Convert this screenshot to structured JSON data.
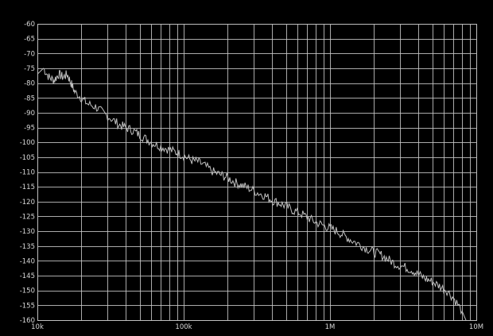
{
  "colors": {
    "background": "#000000",
    "plot_border": "#bfbfbf",
    "grid": "#c8c8c8",
    "trace": "#c0c0c0",
    "tick_label": "#d8d8d8"
  },
  "chart_data": {
    "type": "line",
    "title": "",
    "xlabel": "",
    "ylabel": "",
    "x_scale": "log",
    "xlim": [
      10000,
      10000000
    ],
    "ylim": [
      -160,
      -60
    ],
    "grid": true,
    "x_tick_labels": [
      {
        "value": 10000,
        "label": "10k"
      },
      {
        "value": 100000,
        "label": "100k"
      },
      {
        "value": 1000000,
        "label": "1M"
      },
      {
        "value": 10000000,
        "label": "10M"
      }
    ],
    "y_tick_labels": [
      "-60",
      "-65",
      "-70",
      "-75",
      "-80",
      "-85",
      "-90",
      "-95",
      "-100",
      "-105",
      "-110",
      "-115",
      "-120",
      "-125",
      "-130",
      "-135",
      "-140",
      "-145",
      "-150",
      "-155",
      "-160"
    ],
    "series": [
      {
        "x": [
          10000,
          11000,
          12000,
          13000,
          14000,
          15000,
          16000,
          17000,
          18000,
          20000,
          22000,
          25000,
          28000,
          32000,
          36000,
          40000,
          45000,
          50000,
          56000,
          63000,
          71000,
          80000,
          90000,
          100000,
          112000,
          125000,
          140000,
          160000,
          180000,
          200000,
          224000,
          250000,
          280000,
          320000,
          360000,
          400000,
          450000,
          500000,
          560000,
          630000,
          710000,
          800000,
          900000,
          1000000,
          1120000,
          1250000,
          1400000,
          1600000,
          1800000,
          2000000,
          2240000,
          2500000,
          2800000,
          3200000,
          3600000,
          4000000,
          4500000,
          5000000,
          5600000,
          6300000,
          7100000,
          8000000,
          8500000
        ],
        "y": [
          -77,
          -75,
          -78,
          -79,
          -77,
          -78,
          -77,
          -80,
          -83,
          -85,
          -87,
          -88,
          -90,
          -92,
          -94,
          -95,
          -96,
          -97.5,
          -99,
          -100.5,
          -101.5,
          -102.5,
          -103.5,
          -104.5,
          -106,
          -106.5,
          -108,
          -110,
          -111,
          -112,
          -113.5,
          -114.5,
          -115.5,
          -117,
          -118,
          -119.5,
          -120.5,
          -121.5,
          -123,
          -124,
          -125.5,
          -127,
          -128,
          -129,
          -130,
          -131.5,
          -133,
          -134.5,
          -136,
          -137,
          -138,
          -139.5,
          -141,
          -142,
          -143,
          -144.5,
          -146,
          -147,
          -148.5,
          -150,
          -153,
          -157,
          -160
        ]
      }
    ]
  }
}
